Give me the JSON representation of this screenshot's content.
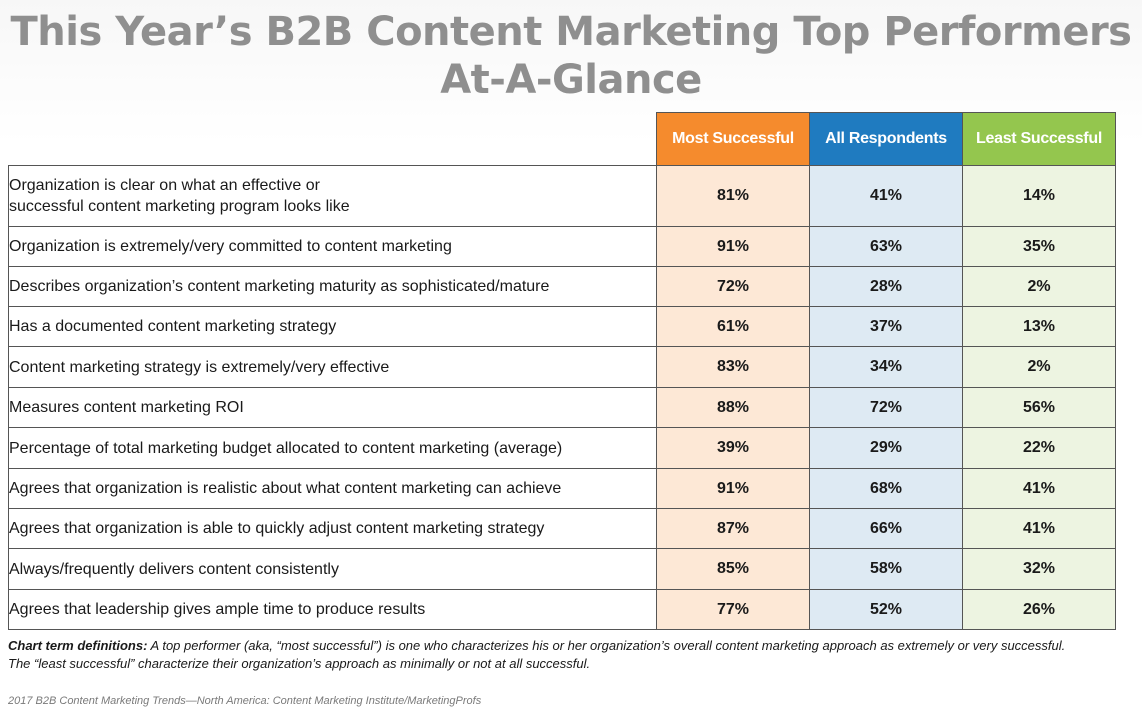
{
  "title": {
    "line1": "This Year’s B2B Content Marketing Top Performers",
    "line2": "At-A-Glance"
  },
  "chart_data": {
    "type": "table",
    "columns": [
      "Most Successful",
      "All Respondents",
      "Least Successful"
    ],
    "column_colors": [
      "#f58b2d",
      "#1f7bc0",
      "#94c64e"
    ],
    "rows": [
      {
        "label": [
          "Organization is clear on what an effective or",
          "successful content marketing program looks like"
        ],
        "values": [
          "81%",
          "41%",
          "14%"
        ]
      },
      {
        "label": [
          "Organization is extremely/very committed to content marketing"
        ],
        "values": [
          "91%",
          "63%",
          "35%"
        ]
      },
      {
        "label": [
          "Describes organization’s content marketing maturity as sophisticated/mature"
        ],
        "values": [
          "72%",
          "28%",
          "2%"
        ]
      },
      {
        "label": [
          "Has a documented content marketing strategy"
        ],
        "values": [
          "61%",
          "37%",
          "13%"
        ]
      },
      {
        "label": [
          "Content marketing strategy is extremely/very effective"
        ],
        "values": [
          "83%",
          "34%",
          "2%"
        ]
      },
      {
        "label": [
          "Measures content marketing ROI"
        ],
        "values": [
          "88%",
          "72%",
          "56%"
        ]
      },
      {
        "label": [
          "Percentage of total marketing budget allocated to content marketing (average)"
        ],
        "values": [
          "39%",
          "29%",
          "22%"
        ]
      },
      {
        "label": [
          "Agrees that organization is realistic about what content marketing can achieve"
        ],
        "values": [
          "91%",
          "68%",
          "41%"
        ]
      },
      {
        "label": [
          "Agrees that organization is able to quickly adjust content marketing strategy"
        ],
        "values": [
          "87%",
          "66%",
          "41%"
        ]
      },
      {
        "label": [
          "Always/frequently delivers content consistently"
        ],
        "values": [
          "85%",
          "58%",
          "32%"
        ]
      },
      {
        "label": [
          "Agrees that leadership gives ample time to produce results"
        ],
        "values": [
          "77%",
          "52%",
          "26%"
        ]
      }
    ]
  },
  "definitions": {
    "lead": "Chart term definitions:",
    "line1": " A top performer (aka, “most successful”) is one who characterizes his or her organization’s overall content marketing approach as extremely or very successful.",
    "line2": "The “least successful” characterize their organization’s approach as minimally or not at all successful."
  },
  "source": "2017 B2B Content Marketing Trends—North America: Content Marketing Institute/MarketingProfs"
}
